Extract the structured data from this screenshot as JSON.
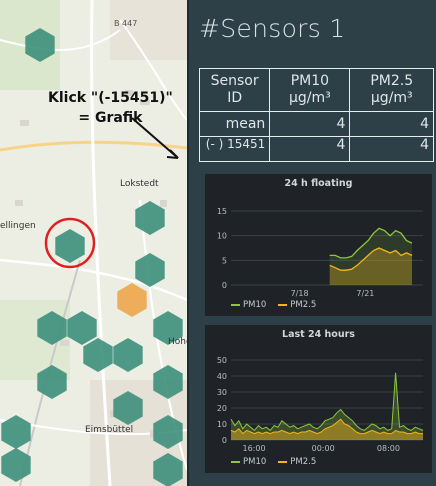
{
  "map": {
    "place_labels": [
      "B 447",
      "Lokstedt",
      "ellingen",
      "Hohen",
      "Eimsbüttel",
      "Stellingen"
    ],
    "annotation_line1": "Klick \"(-15451)\"",
    "annotation_line2": "= Grafik",
    "hex_green": "#3d8f7b",
    "hex_orange": "#eea54a",
    "circle_color": "#e02020"
  },
  "panel": {
    "title": "#Sensors 1",
    "table": {
      "headers": [
        "Sensor ID",
        "PM10 µg/m³",
        "PM2.5 µg/m³"
      ],
      "rows": [
        {
          "id": "mean",
          "pm10": "4",
          "pm25": "4"
        },
        {
          "id": "(- ) 15451",
          "pm10": "4",
          "pm25": "4"
        }
      ]
    }
  },
  "chart_data": [
    {
      "type": "area",
      "title": "24 h floating",
      "xlabel": "",
      "ylabel": "",
      "x": [
        "7/18",
        "7/21"
      ],
      "ylim": [
        0,
        15
      ],
      "yticks": [
        0,
        5,
        10,
        15
      ],
      "series": [
        {
          "name": "PM10",
          "color": "#8fc63f",
          "x": [
            3.6,
            3.8,
            4.0,
            4.2,
            4.4,
            4.6,
            4.8,
            5.0,
            5.2,
            5.4,
            5.6,
            5.8,
            6.0,
            6.2,
            6.4,
            6.6
          ],
          "values": [
            6,
            6,
            5.5,
            5.5,
            5.8,
            7,
            8,
            9,
            10.5,
            11.5,
            11,
            10,
            11,
            10.5,
            9,
            8.5
          ]
        },
        {
          "name": "PM2.5",
          "color": "#f2b61d",
          "x": [
            3.6,
            3.8,
            4.0,
            4.2,
            4.4,
            4.6,
            4.8,
            5.0,
            5.2,
            5.4,
            5.6,
            5.8,
            6.0,
            6.2,
            6.4,
            6.6
          ],
          "values": [
            4,
            3.5,
            3,
            3,
            3.2,
            4,
            5,
            6,
            7,
            7.5,
            7,
            6.5,
            7,
            6,
            6.5,
            6
          ]
        }
      ]
    },
    {
      "type": "area",
      "title": "Last 24 hours",
      "xlabel": "",
      "ylabel": "",
      "xticks": [
        "16:00",
        "00:00",
        "08:00"
      ],
      "ylim": [
        0,
        50
      ],
      "yticks": [
        0,
        10,
        20,
        30,
        40,
        50
      ],
      "series": [
        {
          "name": "PM10",
          "color": "#8fc63f",
          "values": [
            13,
            9,
            12,
            7,
            10,
            8,
            6,
            9,
            7,
            8,
            6,
            9,
            8,
            12,
            10,
            8,
            9,
            7,
            8,
            9,
            10,
            8,
            7,
            9,
            12,
            13,
            14,
            17,
            19,
            16,
            14,
            12,
            9,
            7,
            6,
            8,
            10,
            9,
            7,
            8,
            6,
            7,
            42,
            8,
            9,
            7,
            6,
            8,
            7,
            6
          ]
        },
        {
          "name": "PM2.5",
          "color": "#f2b61d",
          "values": [
            6,
            5,
            7,
            4,
            6,
            5,
            4,
            5,
            4,
            5,
            4,
            5,
            5,
            6,
            5,
            4,
            5,
            4,
            5,
            5,
            6,
            5,
            4,
            5,
            7,
            8,
            9,
            11,
            13,
            10,
            9,
            7,
            5,
            4,
            4,
            5,
            6,
            5,
            4,
            5,
            4,
            4,
            6,
            5,
            5,
            4,
            4,
            5,
            4,
            4
          ]
        }
      ]
    }
  ]
}
